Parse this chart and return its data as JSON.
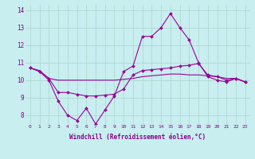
{
  "xlabel": "Windchill (Refroidissement éolien,°C)",
  "background_color": "#c8eef0",
  "line_color": "#990099",
  "grid_color": "#b0d8d0",
  "xlim": [
    -0.5,
    23.5
  ],
  "ylim": [
    7.5,
    14.3
  ],
  "xticks": [
    0,
    1,
    2,
    3,
    4,
    5,
    6,
    7,
    8,
    9,
    10,
    11,
    12,
    13,
    14,
    15,
    16,
    17,
    18,
    19,
    20,
    21,
    22,
    23
  ],
  "yticks": [
    8,
    9,
    10,
    11,
    12,
    13,
    14
  ],
  "hours": [
    0,
    1,
    2,
    3,
    4,
    5,
    6,
    7,
    8,
    9,
    10,
    11,
    12,
    13,
    14,
    15,
    16,
    17,
    18,
    19,
    20,
    21,
    22,
    23
  ],
  "line1": [
    10.7,
    10.5,
    10.0,
    8.8,
    8.0,
    7.7,
    8.4,
    7.5,
    8.3,
    9.1,
    10.5,
    10.8,
    12.5,
    12.5,
    13.0,
    13.8,
    13.0,
    12.3,
    11.0,
    10.2,
    10.0,
    9.9,
    10.1,
    9.9
  ],
  "line2": [
    10.7,
    10.5,
    10.1,
    9.3,
    9.3,
    9.2,
    9.1,
    9.1,
    9.15,
    9.2,
    9.5,
    10.3,
    10.55,
    10.6,
    10.65,
    10.7,
    10.8,
    10.85,
    10.95,
    10.3,
    10.2,
    10.0,
    10.1,
    9.9
  ],
  "line3": [
    10.7,
    10.55,
    10.1,
    10.0,
    10.0,
    10.0,
    10.0,
    10.0,
    10.0,
    10.0,
    10.05,
    10.1,
    10.2,
    10.25,
    10.3,
    10.35,
    10.35,
    10.3,
    10.3,
    10.25,
    10.2,
    10.1,
    10.1,
    9.9
  ]
}
